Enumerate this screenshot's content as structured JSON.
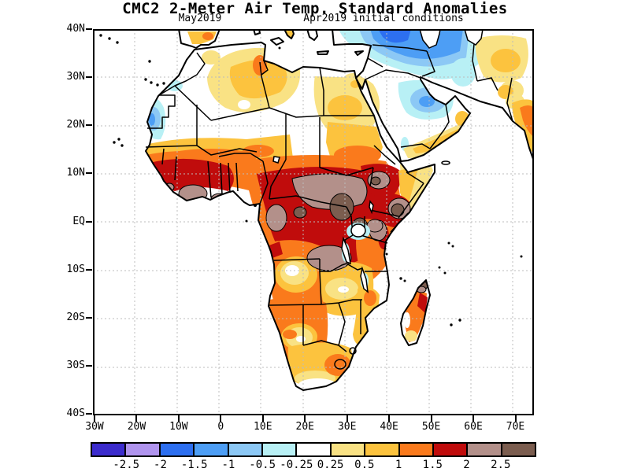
{
  "title": "CMC2 2-Meter Air Temp. Standard Anomalies",
  "subtitles": {
    "left": "May2019",
    "right": "Apr2019 initial conditions"
  },
  "axes": {
    "lat_labels": [
      "40N",
      "30N",
      "20N",
      "10N",
      "EQ",
      "10S",
      "20S",
      "30S",
      "40S"
    ],
    "lon_labels": [
      "30W",
      "20W",
      "10W",
      "0",
      "10E",
      "20E",
      "30E",
      "40E",
      "50E",
      "60E",
      "70E"
    ]
  },
  "colorbar": {
    "labels": [
      "-2.5",
      "-2",
      "-1.5",
      "-1",
      "-0.5",
      "-0.25",
      "0.25",
      "0.5",
      "1",
      "1.5",
      "2",
      "2.5"
    ],
    "colors": [
      "#3c2ccd",
      "#b094ee",
      "#2d6ff0",
      "#4d9ef5",
      "#8cc8f5",
      "#b8f0f5",
      "#ffffff",
      "#f9e284",
      "#fcc33e",
      "#fa7a1c",
      "#c00c0c",
      "#b3908a",
      "#7b5d4f"
    ]
  },
  "chart_data": {
    "type": "heatmap",
    "title": "CMC2 2-Meter Air Temp. Standard Anomalies",
    "subtitle_left": "May2019",
    "subtitle_right": "Apr2019 initial conditions",
    "x_axis": {
      "ticks": [
        "30W",
        "20W",
        "10W",
        "0",
        "10E",
        "20E",
        "30E",
        "40E",
        "50E",
        "60E",
        "70E"
      ],
      "range": [
        "30W",
        "75E"
      ]
    },
    "y_axis": {
      "ticks": [
        "40N",
        "30N",
        "20N",
        "10N",
        "EQ",
        "10S",
        "20S",
        "30S",
        "40S"
      ],
      "range": [
        "40S",
        "40N"
      ]
    },
    "grid": true,
    "legend_position": "bottom",
    "colorbar_levels": [
      -2.5,
      -2,
      -1.5,
      -1,
      -0.5,
      -0.25,
      0.25,
      0.5,
      1,
      1.5,
      2,
      2.5
    ],
    "colorbar_colors": [
      "#3c2ccd",
      "#b094ee",
      "#2d6ff0",
      "#4d9ef5",
      "#8cc8f5",
      "#b8f0f5",
      "#ffffff",
      "#f9e284",
      "#fcc33e",
      "#fa7a1c",
      "#c00c0c",
      "#b3908a",
      "#7b5d4f"
    ],
    "land_masked": true,
    "regions": [
      {
        "area": "Southern Spain",
        "anomaly": "+0.5 to +1.5"
      },
      {
        "area": "Morocco interior",
        "anomaly": "-0.25 to +0.5"
      },
      {
        "area": "Western Sahara / Mauritania Atlantic coast",
        "anomaly": "-0.25 to -1.5"
      },
      {
        "area": "Algeria / Tunisia / Libya",
        "anomaly": "+0.25 to +1.5"
      },
      {
        "area": "Egypt (southwest)",
        "anomaly": "+0.5 to +1"
      },
      {
        "area": "Sahel (Senegal to Sudan)",
        "anomaly": "+0.5 to +1.5"
      },
      {
        "area": "Guinea coast (Guinea to Ghana, Liberia brown cores)",
        "anomaly": "+1.5 to >+2.5"
      },
      {
        "area": "Congo Basin / Central Africa",
        "anomaly": "+1.5 to +2.5"
      },
      {
        "area": "CAR / South Sudan / Uganda",
        "anomaly": "+2 to >+2.5"
      },
      {
        "area": "Ethiopia highlands",
        "anomaly": "+1.5 to >+2.5"
      },
      {
        "area": "SE Ethiopia / Ogaden",
        "anomaly": "+2 to >+2.5"
      },
      {
        "area": "Horn of Somalia",
        "anomaly": "0 to +0.5"
      },
      {
        "area": "Kenya / Tanzania",
        "anomaly": "+1 to +2.5"
      },
      {
        "area": "Angola interior bullseye",
        "anomaly": "0 to +0.5"
      },
      {
        "area": "Zambia",
        "anomaly": "+0.25 to +0.5"
      },
      {
        "area": "Namibia / Botswana",
        "anomaly": "+0.5 to +1.5"
      },
      {
        "area": "South Africa (east, around Lesotho)",
        "anomaly": "+1 to +1.5"
      },
      {
        "area": "Madagascar (red on east coast, brown at north tip)",
        "anomaly": "+1 to >+2.5"
      },
      {
        "area": "Central Arabian Peninsula",
        "anomaly": "-0.5 to -1.5"
      },
      {
        "area": "Yemen / Oman south coast",
        "anomaly": "+0.5 to +1"
      },
      {
        "area": "Turkey / Caucasus / Iran",
        "anomaly": "-1 to -2"
      },
      {
        "area": "Afghanistan / Pakistan / NW India",
        "anomaly": "+0.5 to +1.5"
      }
    ]
  }
}
